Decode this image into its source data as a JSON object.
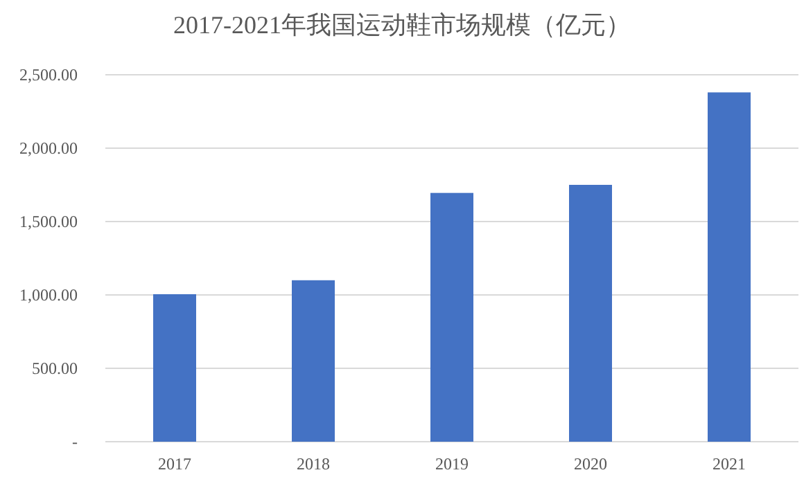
{
  "chart_data": {
    "type": "bar",
    "title": "2017-2021年我国运动鞋市场规模（亿元）",
    "categories": [
      "2017",
      "2018",
      "2019",
      "2020",
      "2021"
    ],
    "values": [
      1005,
      1100,
      1695,
      1750,
      2380
    ],
    "color": "#4472c4",
    "ylim": [
      0,
      2500
    ],
    "yticks": [
      {
        "value": 0,
        "label": "-"
      },
      {
        "value": 500,
        "label": "500.00"
      },
      {
        "value": 1000,
        "label": "1,000.00"
      },
      {
        "value": 1500,
        "label": "1,500.00"
      },
      {
        "value": 2000,
        "label": "2,000.00"
      },
      {
        "value": 2500,
        "label": "2,500.00"
      }
    ],
    "grid": "y"
  }
}
